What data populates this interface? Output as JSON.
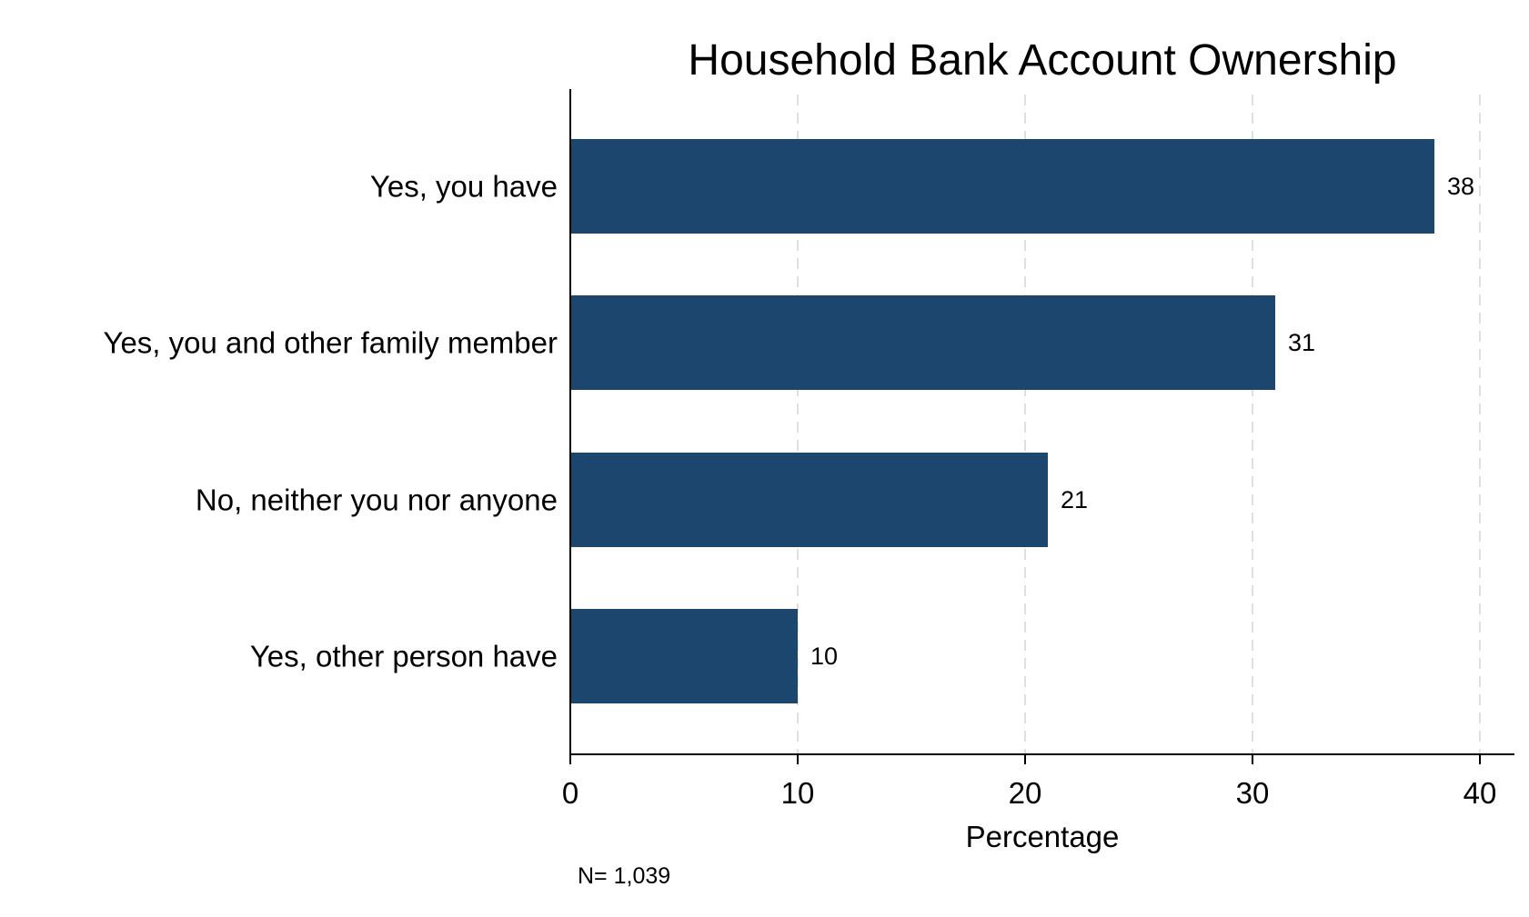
{
  "chart_data": {
    "type": "bar",
    "orientation": "horizontal",
    "title": "Household Bank Account Ownership",
    "xlabel": "Percentage",
    "ylabel": "",
    "categories": [
      "Yes, you have",
      "Yes, you and other family member",
      "No, neither you nor anyone",
      "Yes, other person have"
    ],
    "values": [
      38,
      31,
      21,
      10
    ],
    "value_labels": [
      "38",
      "31",
      "21",
      "10"
    ],
    "xlim": [
      0,
      40
    ],
    "xticks": [
      0,
      10,
      20,
      30,
      40
    ],
    "xtick_labels": [
      "0",
      "10",
      "20",
      "30",
      "40"
    ],
    "grid": "vertical dashed",
    "bar_color": "#1c466e",
    "grid_color": "#e0e0e0",
    "note": "N= 1,039"
  }
}
